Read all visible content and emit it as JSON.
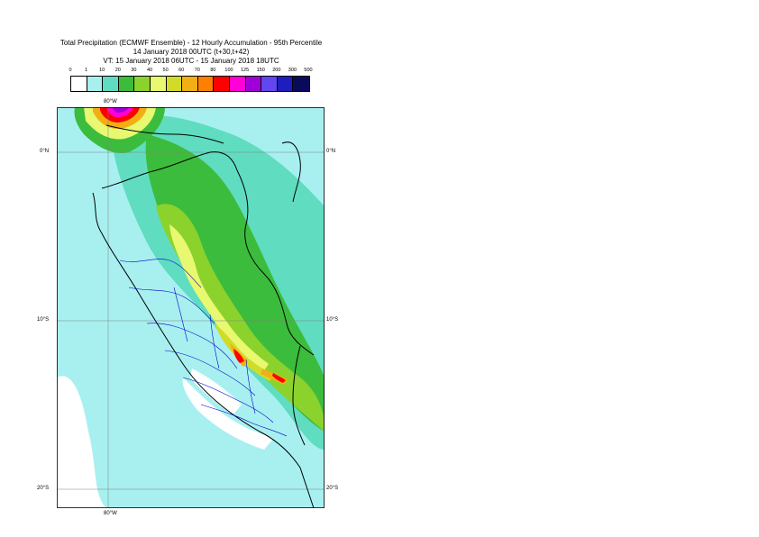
{
  "title": {
    "line1": "Total Precipitation (ECMWF Ensemble) - 12 Hourly Accumulation - 95th Percentile",
    "line2": "14 January 2018 00UTC (t+30,t+42)",
    "line3": "VT: 15 January 2018 06UTC - 15 January 2018 18UTC"
  },
  "legend": {
    "thresholds": [
      "0",
      "1",
      "10",
      "20",
      "30",
      "40",
      "50",
      "60",
      "70",
      "80",
      "100",
      "125",
      "150",
      "200",
      "300",
      "500"
    ],
    "colors": [
      "#ffffff",
      "#a8f0f0",
      "#60dcc0",
      "#3cbc3c",
      "#8cd22c",
      "#e8f870",
      "#d2dc28",
      "#f0b014",
      "#ff8000",
      "#ff0000",
      "#ff00d8",
      "#a000d8",
      "#6446f0",
      "#1e1ebe",
      "#0a0a5a"
    ]
  },
  "map": {
    "lat_labels": {
      "north": "0°N",
      "south10": "10°S",
      "south20": "20°S"
    },
    "lon_labels": {
      "top": "80°W",
      "bottom": "80°W"
    },
    "colors": {
      "ocean_light": "#a8f0f0",
      "band_10": "#60dcc0",
      "band_20": "#3cbc3c",
      "band_30": "#8cd22c",
      "band_40": "#e8f870",
      "band_50": "#d2dc28",
      "band_60": "#f0b014",
      "band_80": "#ff0000",
      "band_100": "#ff00d8",
      "band_125": "#a000d8",
      "border_country": "#000000",
      "border_region": "#0000cc",
      "grid": "#808080"
    }
  }
}
